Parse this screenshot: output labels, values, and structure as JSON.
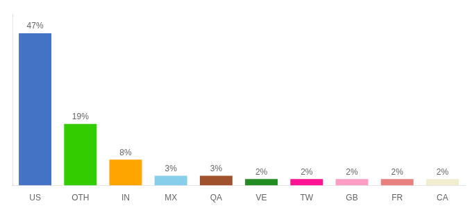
{
  "chart_data": {
    "type": "bar",
    "categories": [
      "US",
      "OTH",
      "IN",
      "MX",
      "QA",
      "VE",
      "TW",
      "GB",
      "FR",
      "CA"
    ],
    "values": [
      47,
      19,
      8,
      3,
      3,
      2,
      2,
      2,
      2,
      2
    ],
    "value_labels": [
      "47%",
      "19%",
      "8%",
      "3%",
      "3%",
      "2%",
      "2%",
      "2%",
      "2%",
      "2%"
    ],
    "colors": [
      "#4472C4",
      "#33CC00",
      "#FFA500",
      "#87CEEB",
      "#A0522D",
      "#228B22",
      "#FF1493",
      "#FF9EC4",
      "#E88080",
      "#F0EDD0"
    ],
    "ylim": [
      0,
      53
    ],
    "grid": false,
    "tick_labels": "x",
    "data_labels": true
  }
}
